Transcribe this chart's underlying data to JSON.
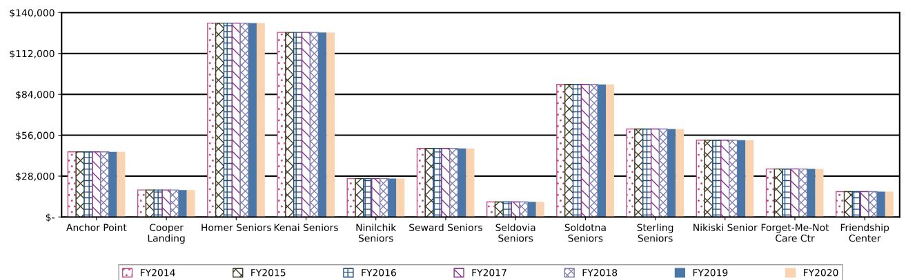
{
  "chart_data": {
    "type": "bar",
    "categories": [
      "Anchor Point",
      "Cooper\nLanding",
      "Homer Seniors",
      "Kenai Seniors",
      "Ninilchik\nSeniors",
      "Seward Seniors",
      "Seldovia\nSeniors",
      "Soldotna\nSeniors",
      "Sterling\nSeniors",
      "Nikiski Senior",
      "Forget-Me-Not\nCare Ctr",
      "Friendship\nCenter"
    ],
    "series": [
      {
        "name": "FY2014",
        "color": "#c0508a",
        "values": [
          44600,
          18500,
          132800,
          126400,
          26300,
          47000,
          10300,
          90800,
          60300,
          52600,
          32900,
          17400
        ]
      },
      {
        "name": "FY2015",
        "color": "#3b3b1f",
        "values": [
          44600,
          18500,
          132800,
          126400,
          26300,
          47000,
          10300,
          90800,
          60300,
          52600,
          32900,
          17400
        ]
      },
      {
        "name": "FY2016",
        "color": "#1f4e79",
        "values": [
          44600,
          18500,
          132800,
          126400,
          26300,
          47000,
          10300,
          90800,
          60300,
          52600,
          32900,
          17400
        ]
      },
      {
        "name": "FY2017",
        "color": "#8b2e8b",
        "values": [
          44600,
          18500,
          132800,
          126400,
          26300,
          47000,
          10300,
          90800,
          60300,
          52600,
          32900,
          17400
        ]
      },
      {
        "name": "FY2018",
        "color": "#8080b0",
        "values": [
          44600,
          18500,
          132800,
          126400,
          26300,
          47000,
          10300,
          90800,
          60300,
          52600,
          32900,
          17400
        ]
      },
      {
        "name": "FY2019",
        "color": "#4a76a8",
        "values": [
          44600,
          18500,
          132800,
          126400,
          26300,
          47000,
          10300,
          90800,
          60300,
          52600,
          32900,
          17400
        ]
      },
      {
        "name": "FY2020",
        "color": "#fad3b0",
        "values": [
          44600,
          18500,
          132800,
          126400,
          26300,
          47000,
          10300,
          90800,
          60300,
          52600,
          32900,
          17400
        ]
      }
    ],
    "ylim": [
      0,
      140000
    ],
    "yticks": [
      {
        "value": 0,
        "label": "$-"
      },
      {
        "value": 28000,
        "label": "$28,000"
      },
      {
        "value": 56000,
        "label": "$56,000"
      },
      {
        "value": 84000,
        "label": "$84,000"
      },
      {
        "value": 112000,
        "label": "$112,000"
      },
      {
        "value": 140000,
        "label": "$140,000"
      }
    ],
    "grid": "y",
    "legend": "bottom"
  }
}
